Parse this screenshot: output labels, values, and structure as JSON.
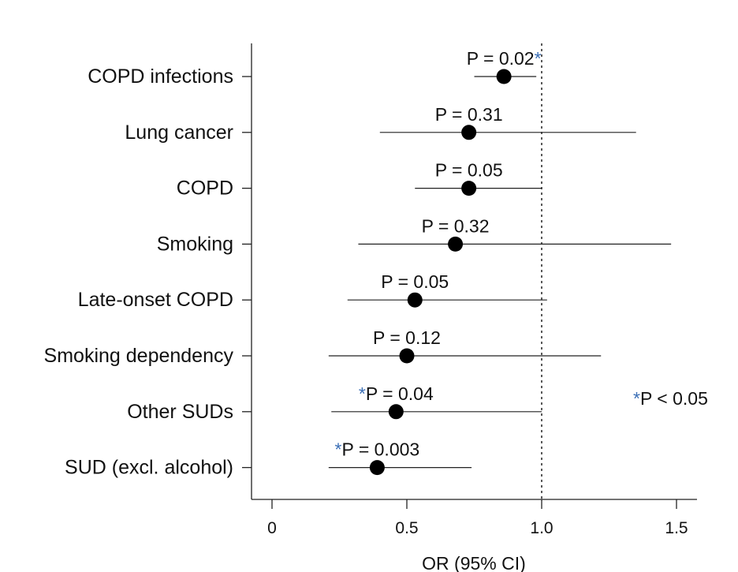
{
  "chart_data": {
    "type": "scatter",
    "subtype": "forest-plot",
    "title": "",
    "xlabel": "OR (95% CI)",
    "ylabel": "",
    "xlim": [
      -0.08,
      1.58
    ],
    "xticks": [
      0,
      0.5,
      1.0,
      1.5
    ],
    "xtick_labels": [
      "0",
      "0.5",
      "1.0",
      "1.5"
    ],
    "reference_line": 1.0,
    "star_color": "#3b6fb6",
    "legend_note": {
      "star": "*",
      "text": "P < 0.05"
    },
    "rows": [
      {
        "label": "COPD infections",
        "or": 0.86,
        "ci_low": 0.75,
        "ci_high": 0.98,
        "p_text": "P = 0.02",
        "star_position": "after"
      },
      {
        "label": "Lung cancer",
        "or": 0.73,
        "ci_low": 0.4,
        "ci_high": 1.35,
        "p_text": "P = 0.31",
        "star_position": "none"
      },
      {
        "label": "COPD",
        "or": 0.73,
        "ci_low": 0.53,
        "ci_high": 1.0,
        "p_text": "P = 0.05",
        "star_position": "none"
      },
      {
        "label": "Smoking",
        "or": 0.68,
        "ci_low": 0.32,
        "ci_high": 1.48,
        "p_text": "P = 0.32",
        "star_position": "none"
      },
      {
        "label": "Late-onset COPD",
        "or": 0.53,
        "ci_low": 0.28,
        "ci_high": 1.02,
        "p_text": "P = 0.05",
        "star_position": "none"
      },
      {
        "label": "Smoking dependency",
        "or": 0.5,
        "ci_low": 0.21,
        "ci_high": 1.22,
        "p_text": "P = 0.12",
        "star_position": "none"
      },
      {
        "label": "Other SUDs",
        "or": 0.46,
        "ci_low": 0.22,
        "ci_high": 1.0,
        "p_text": "P = 0.04",
        "star_position": "before"
      },
      {
        "label": "SUD (excl. alcohol)",
        "or": 0.39,
        "ci_low": 0.21,
        "ci_high": 0.74,
        "p_text": "P = 0.003",
        "star_position": "before"
      }
    ]
  }
}
